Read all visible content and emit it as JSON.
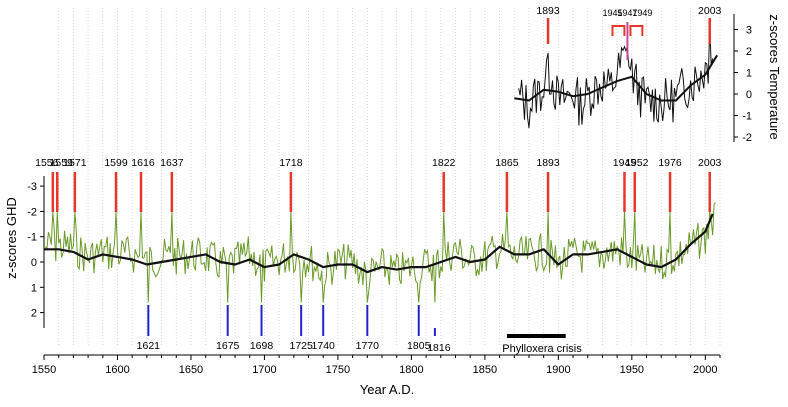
{
  "chart_data": [
    {
      "type": "line",
      "panel": "main",
      "xlabel": "Year A.D.",
      "ylabel": "z-scores GHD",
      "xlim": [
        1550,
        2010
      ],
      "ylim": [
        3.3,
        -3.3
      ],
      "y_inverted": true,
      "xticks": [
        1550,
        1600,
        1650,
        1700,
        1750,
        1800,
        1850,
        1900,
        1950,
        2000
      ],
      "yticks": [
        -3,
        -2,
        -1,
        0,
        1,
        2
      ],
      "vertical_grid": true,
      "series": [
        {
          "role": "annual values",
          "color": "#6a9a2a",
          "x": [
            1560,
            1570,
            1580,
            1590,
            1600,
            1610,
            1620,
            1630,
            1640,
            1650,
            1660,
            1670,
            1680,
            1690,
            1700,
            1710,
            1720,
            1730,
            1740,
            1750,
            1760,
            1770,
            1780,
            1790,
            1800,
            1810,
            1820,
            1830,
            1840,
            1850,
            1860,
            1870,
            1880,
            1890,
            1900,
            1910,
            1920,
            1930,
            1940,
            1950,
            1960,
            1970,
            1980,
            1990,
            2000,
            2007
          ],
          "y": [
            -0.6,
            -0.6,
            -0.2,
            -0.4,
            -0.3,
            -0.3,
            0.0,
            -0.2,
            -0.2,
            -0.3,
            -0.2,
            0.1,
            0.0,
            -0.3,
            0.2,
            -0.1,
            -0.3,
            -0.1,
            0.4,
            0.0,
            0.0,
            0.6,
            0.2,
            0.4,
            0.2,
            0.1,
            0.0,
            -0.5,
            0.0,
            -0.2,
            -0.5,
            -0.2,
            -0.3,
            -0.4,
            0.1,
            -0.3,
            -0.2,
            -0.3,
            -0.5,
            -0.1,
            0.1,
            0.0,
            -0.2,
            -0.6,
            -1.0,
            -1.8
          ]
        },
        {
          "role": "smoothed",
          "color": "#111111",
          "x": [
            1550,
            1560,
            1570,
            1580,
            1590,
            1600,
            1610,
            1620,
            1630,
            1640,
            1650,
            1660,
            1670,
            1680,
            1690,
            1700,
            1710,
            1720,
            1730,
            1740,
            1750,
            1760,
            1770,
            1780,
            1790,
            1800,
            1810,
            1820,
            1830,
            1840,
            1850,
            1860,
            1870,
            1880,
            1890,
            1900,
            1910,
            1920,
            1930,
            1940,
            1950,
            1960,
            1970,
            1980,
            1990,
            2000,
            2005
          ],
          "y": [
            -0.5,
            -0.5,
            -0.4,
            -0.1,
            -0.3,
            -0.2,
            -0.1,
            0.1,
            0.0,
            -0.1,
            -0.2,
            -0.3,
            0.0,
            0.1,
            -0.1,
            0.2,
            0.1,
            -0.3,
            -0.1,
            0.2,
            0.1,
            0.1,
            0.4,
            0.2,
            0.3,
            0.2,
            0.2,
            0.0,
            -0.2,
            0.0,
            -0.1,
            -0.6,
            -0.3,
            -0.3,
            -0.5,
            0.1,
            -0.3,
            -0.3,
            -0.4,
            -0.5,
            -0.2,
            0.1,
            0.2,
            -0.1,
            -0.7,
            -1.2,
            -1.9
          ]
        }
      ],
      "annotations": {
        "warm_years": [
          1556,
          1559,
          1571,
          1599,
          1616,
          1637,
          1718,
          1822,
          1865,
          1893,
          1945,
          1952,
          1976,
          2003
        ],
        "warm_color": "#e8362b",
        "cold_years": [
          1621,
          1675,
          1698,
          1725,
          1740,
          1770,
          1805,
          1816
        ],
        "cold_color": "#1f24c8",
        "period_label": "Phylloxera crisis",
        "period_range": [
          1865,
          1905
        ]
      }
    },
    {
      "type": "line",
      "panel": "inset",
      "ylabel": "z-scores Temperature",
      "xlim": [
        1550,
        2010
      ],
      "ylim": [
        -2.2,
        3.5
      ],
      "yticks": [
        -2,
        -1,
        0,
        1,
        2,
        3
      ],
      "series": [
        {
          "role": "annual values",
          "color": "#111111",
          "x": [
            1870,
            1875,
            1880,
            1885,
            1890,
            1895,
            1900,
            1905,
            1910,
            1915,
            1920,
            1925,
            1930,
            1935,
            1940,
            1945,
            1950,
            1955,
            1960,
            1965,
            1970,
            1975,
            1980,
            1985,
            1990,
            1995,
            2000,
            2005
          ],
          "y": [
            -0.3,
            -0.2,
            -0.6,
            0.0,
            0.3,
            0.9,
            -0.3,
            -0.2,
            0.1,
            -0.5,
            -0.1,
            0.3,
            0.5,
            0.2,
            0.9,
            1.8,
            1.0,
            0.1,
            -0.4,
            -0.3,
            -0.4,
            -0.3,
            -0.2,
            0.3,
            0.5,
            0.8,
            1.2,
            1.8
          ]
        },
        {
          "role": "smoothed",
          "color": "#111111",
          "x": [
            1870,
            1880,
            1890,
            1900,
            1910,
            1920,
            1930,
            1940,
            1950,
            1960,
            1970,
            1980,
            1990,
            2000,
            2008
          ],
          "y": [
            -0.2,
            -0.3,
            0.2,
            0.1,
            -0.1,
            0.0,
            0.3,
            0.6,
            0.8,
            0.0,
            -0.3,
            -0.3,
            0.4,
            0.9,
            1.8
          ]
        }
      ],
      "annotations": {
        "warm_years": [
          1893,
          1945,
          1947,
          1949,
          2003
        ],
        "warm_color": "#e8362b",
        "highlight_color": "#c9469a"
      }
    }
  ]
}
